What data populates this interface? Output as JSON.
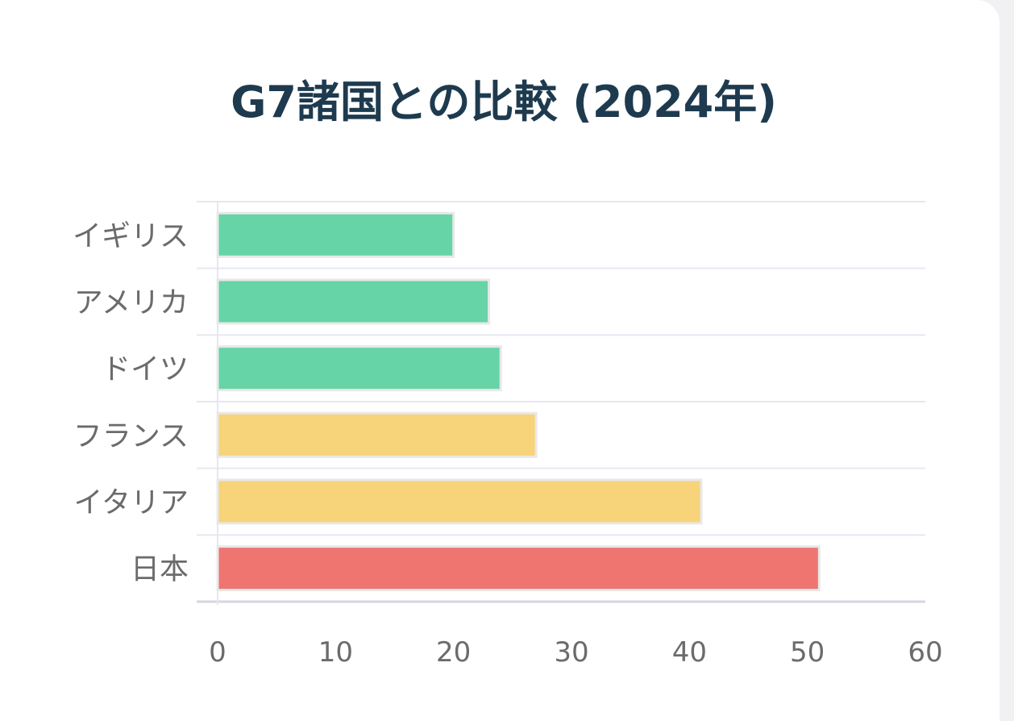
{
  "chart_data": {
    "type": "bar",
    "orientation": "horizontal",
    "title": "G7諸国との比較 (2024年)",
    "categories": [
      "イギリス",
      "アメリカ",
      "ドイツ",
      "フランス",
      "イタリア",
      "日本"
    ],
    "values": [
      20,
      23,
      24,
      27,
      41,
      51
    ],
    "bar_colors": [
      "#66d4a7",
      "#66d4a7",
      "#66d4a7",
      "#f7d37a",
      "#f7d37a",
      "#ee7570"
    ],
    "xlabel": "",
    "ylabel": "",
    "xlim": [
      0,
      60
    ],
    "xticks": [
      0,
      10,
      20,
      30,
      40,
      50,
      60
    ],
    "grid": true,
    "legend": "none"
  }
}
